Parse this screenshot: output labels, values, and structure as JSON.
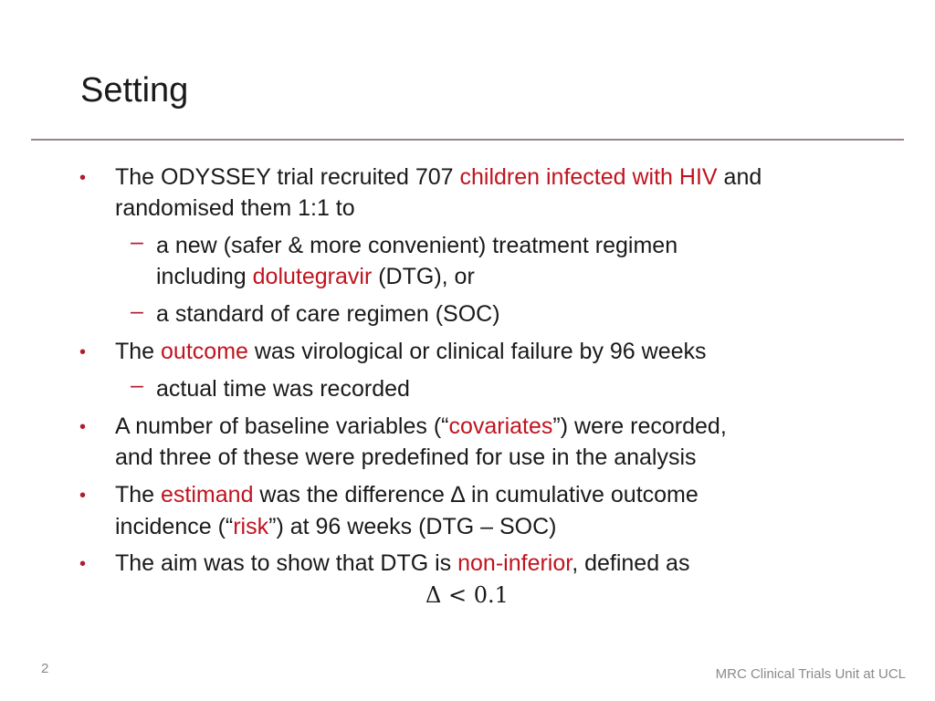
{
  "slide": {
    "title": "Setting",
    "page_number": "2",
    "footer": "MRC Clinical Trials Unit at UCL"
  },
  "colors": {
    "highlight": "#c0141f",
    "rule": "#9a8384",
    "bullet": "#b01c2e"
  },
  "bullets": {
    "b1": {
      "pre": "The ODYSSEY trial recruited 707 ",
      "hl": "children infected with HIV",
      "post": " and",
      "line2": "randomised them 1:1 to",
      "sub1_line1": "a new (safer & more convenient) treatment regimen",
      "sub1_pre": "including ",
      "sub1_hl": "dolutegravir",
      "sub1_post": " (DTG), or",
      "sub2": "a standard of care regimen (SOC)"
    },
    "b2": {
      "pre": "The ",
      "hl": "outcome",
      "post": " was virological or clinical failure by 96 weeks",
      "sub1": "actual time was recorded"
    },
    "b3": {
      "pre": "A number of baseline variables (“",
      "hl": "covariates",
      "post": "”) were recorded,",
      "line2": "and three of these were predefined for use in the analysis"
    },
    "b4": {
      "pre": "The ",
      "hl": "estimand",
      "post": " was the difference ∆ in cumulative outcome",
      "line2_pre": "incidence (“",
      "line2_hl": "risk",
      "line2_post": "”) at 96 weeks (DTG – SOC)"
    },
    "b5": {
      "pre": "The aim was to show that DTG is ",
      "hl": "non-inferior",
      "post": ", defined as",
      "formula": "Δ < 0.1"
    }
  },
  "markers": {
    "bullet": "•",
    "dash": "–"
  }
}
